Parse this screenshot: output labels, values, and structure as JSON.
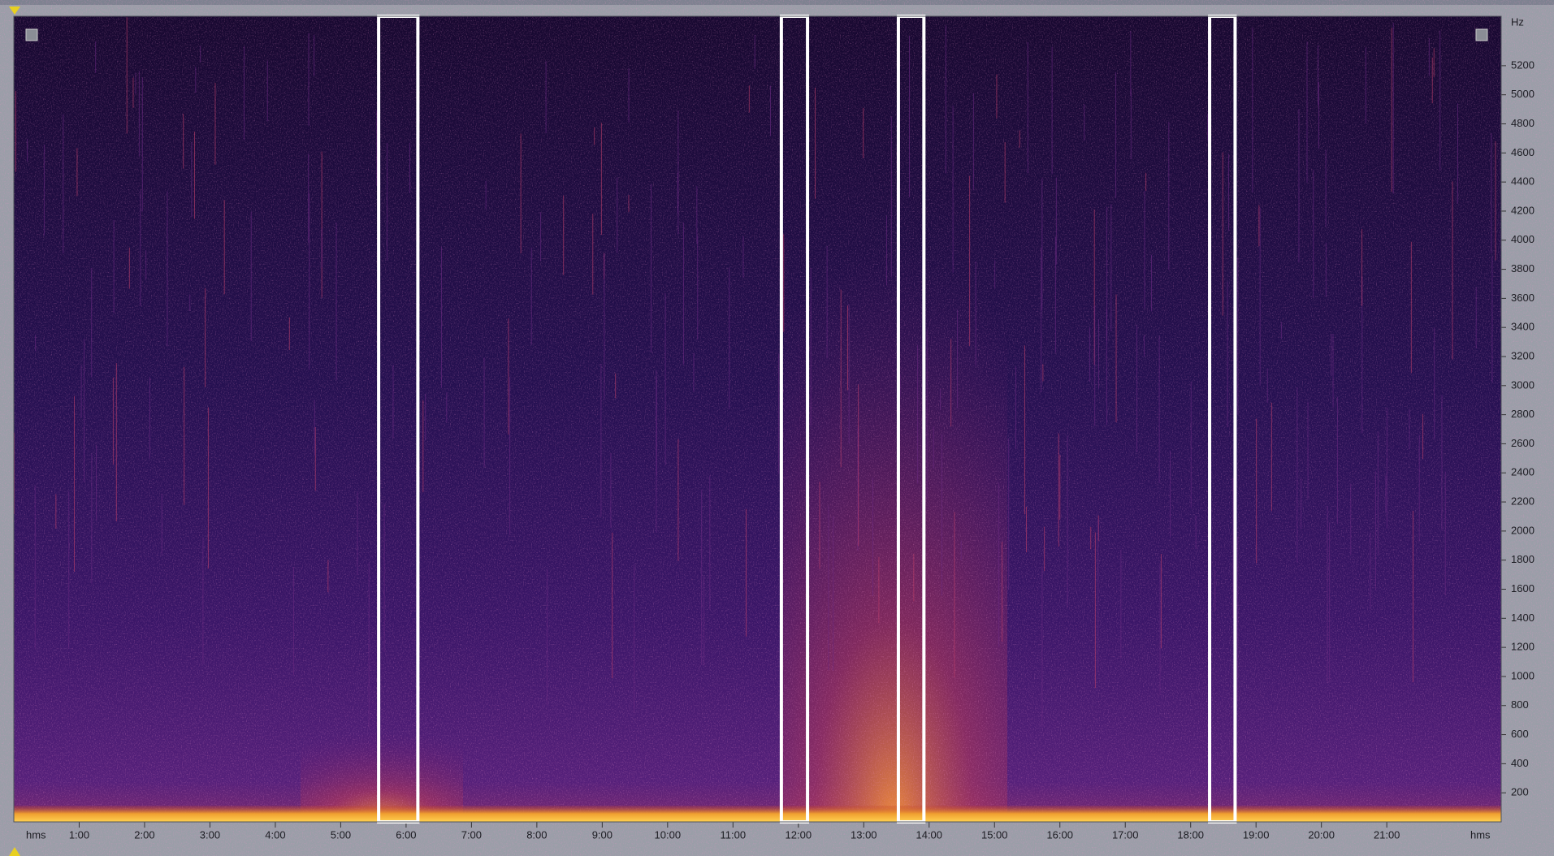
{
  "spectrogram": {
    "time_axis": {
      "unit_label": "hms",
      "xlim": [
        0,
        22.75
      ],
      "ticks": [
        {
          "value": 1,
          "label": "1:00"
        },
        {
          "value": 2,
          "label": "2:00"
        },
        {
          "value": 3,
          "label": "3:00"
        },
        {
          "value": 4,
          "label": "4:00"
        },
        {
          "value": 5,
          "label": "5:00"
        },
        {
          "value": 6,
          "label": "6:00"
        },
        {
          "value": 7,
          "label": "7:00"
        },
        {
          "value": 8,
          "label": "8:00"
        },
        {
          "value": 9,
          "label": "9:00"
        },
        {
          "value": 10,
          "label": "10:00"
        },
        {
          "value": 11,
          "label": "11:00"
        },
        {
          "value": 12,
          "label": "12:00"
        },
        {
          "value": 13,
          "label": "13:00"
        },
        {
          "value": 14,
          "label": "14:00"
        },
        {
          "value": 15,
          "label": "15:00"
        },
        {
          "value": 16,
          "label": "16:00"
        },
        {
          "value": 17,
          "label": "17:00"
        },
        {
          "value": 18,
          "label": "18:00"
        },
        {
          "value": 19,
          "label": "19:00"
        },
        {
          "value": 20,
          "label": "20:00"
        },
        {
          "value": 21,
          "label": "21:00"
        }
      ]
    },
    "frequency_axis": {
      "unit_label": "Hz",
      "ylim": [
        0,
        5540
      ],
      "ticks": [
        200,
        400,
        600,
        800,
        1000,
        1200,
        1400,
        1600,
        1800,
        2000,
        2200,
        2400,
        2600,
        2800,
        3000,
        3200,
        3400,
        3600,
        3800,
        4000,
        4200,
        4400,
        4600,
        4800,
        5000,
        5200
      ]
    },
    "selections": [
      {
        "start": 5.58,
        "end": 6.18
      },
      {
        "start": 11.74,
        "end": 12.14
      },
      {
        "start": 13.53,
        "end": 13.92
      },
      {
        "start": 18.29,
        "end": 18.68
      }
    ]
  }
}
